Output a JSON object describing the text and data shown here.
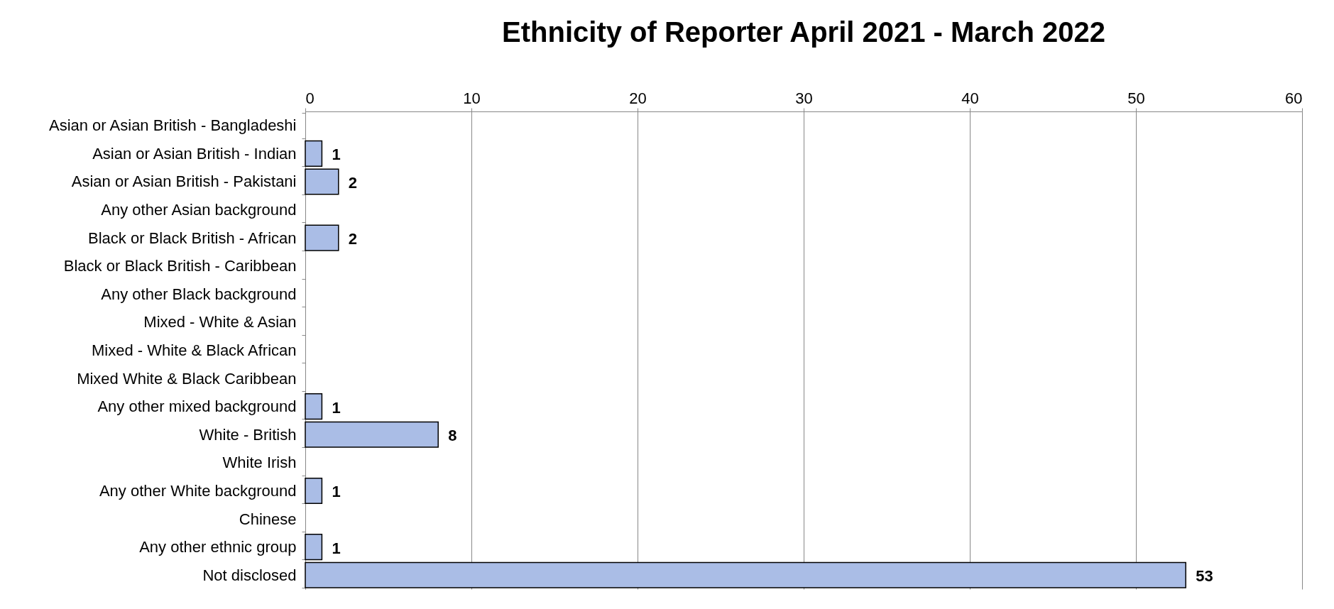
{
  "chart_data": {
    "type": "bar",
    "orientation": "horizontal",
    "title": "Ethnicity of Reporter April 2021 - March 2022",
    "categories": [
      "Asian or Asian British - Bangladeshi",
      "Asian or Asian British - Indian",
      "Asian or Asian British - Pakistani",
      "Any other Asian background",
      "Black or Black British - African",
      "Black or Black British - Caribbean",
      "Any other Black background",
      "Mixed - White & Asian",
      "Mixed - White & Black African",
      "Mixed White & Black Caribbean",
      "Any other mixed background",
      "White - British",
      "White Irish",
      "Any other White background",
      "Chinese",
      "Any other ethnic group",
      "Not disclosed"
    ],
    "values": [
      0,
      1,
      2,
      0,
      2,
      0,
      0,
      0,
      0,
      0,
      1,
      8,
      0,
      1,
      0,
      1,
      53
    ],
    "value_labels": [
      null,
      "1",
      "2",
      null,
      "2",
      null,
      null,
      null,
      null,
      null,
      "1",
      "8",
      null,
      "1",
      null,
      "1",
      "53"
    ],
    "color": "#aabde6",
    "xlim": [
      0,
      60
    ],
    "xticks": [
      0,
      10,
      20,
      30,
      40,
      50,
      60
    ],
    "grid": "x"
  }
}
